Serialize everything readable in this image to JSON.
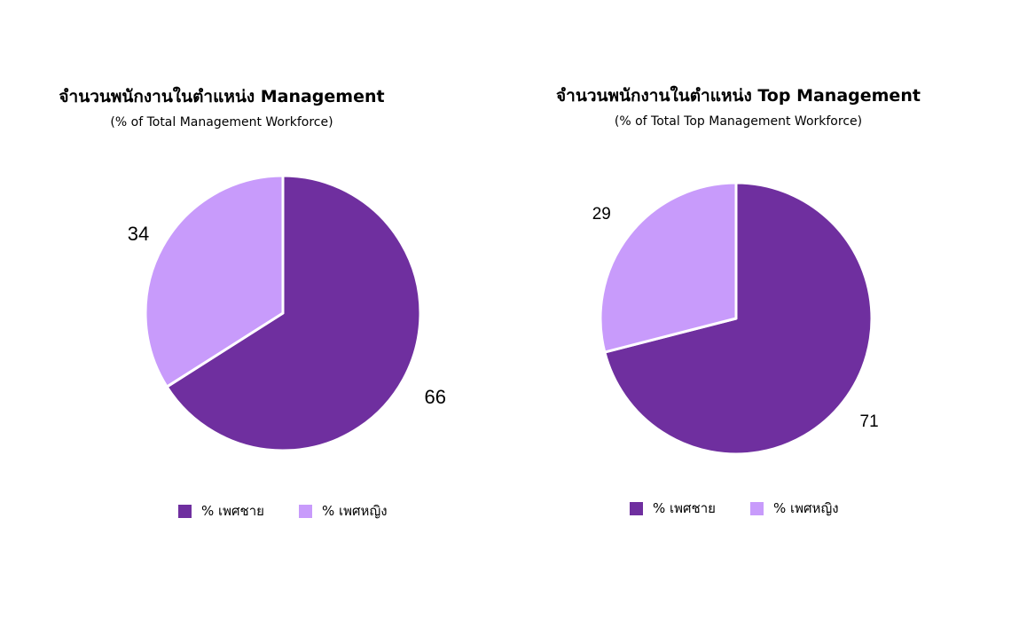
{
  "chart_data": [
    {
      "type": "pie",
      "title": "จำนวนพนักงานในตำแหน่ง Management",
      "subtitle": "(% of Total Management Workforce)",
      "categories": [
        "% เพศชาย",
        "% เพศหญิง"
      ],
      "values": [
        66,
        34
      ],
      "colors": [
        "#6f2f9f",
        "#c89bfb"
      ],
      "legend": "bottom"
    },
    {
      "type": "pie",
      "title": "จำนวนพนักงานในตำแหน่ง Top Management",
      "subtitle": "(% of Total Top Management Workforce)",
      "categories": [
        "% เพศชาย",
        "% เพศหญิง"
      ],
      "values": [
        71,
        29
      ],
      "colors": [
        "#6f2f9f",
        "#c89bfb"
      ],
      "legend": "bottom"
    }
  ]
}
